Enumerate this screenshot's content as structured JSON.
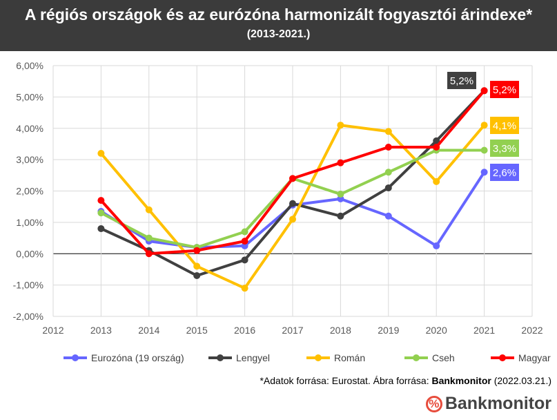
{
  "chart_data": {
    "type": "line",
    "title": "A régiós országok és az eurózóna harmonizált fogyasztói árindexe*",
    "subtitle": "(2013-2021.)",
    "x": [
      2013,
      2014,
      2015,
      2016,
      2017,
      2018,
      2019,
      2020,
      2021
    ],
    "xlim": [
      2012,
      2022
    ],
    "xticks": [
      "2012",
      "2013",
      "2014",
      "2015",
      "2016",
      "2017",
      "2018",
      "2019",
      "2020",
      "2021",
      "2022"
    ],
    "ylim": [
      -2,
      6
    ],
    "yticks": [
      "-2,00%",
      "-1,00%",
      "0,00%",
      "1,00%",
      "2,00%",
      "3,00%",
      "4,00%",
      "5,00%",
      "6,00%"
    ],
    "grid": true,
    "legend_position": "bottom",
    "series": [
      {
        "name": "Eurozóna (19 ország)",
        "color": "#6666ff",
        "values": [
          1.35,
          0.4,
          0.2,
          0.25,
          1.55,
          1.75,
          1.2,
          0.25,
          2.6
        ],
        "end_label": "2,6%"
      },
      {
        "name": "Lengyel",
        "color": "#404040",
        "values": [
          0.8,
          0.1,
          -0.7,
          -0.2,
          1.6,
          1.2,
          2.1,
          3.6,
          5.2
        ],
        "end_label": "5,2%"
      },
      {
        "name": "Román",
        "color": "#ffc000",
        "values": [
          3.2,
          1.4,
          -0.4,
          -1.1,
          1.1,
          4.1,
          3.9,
          2.3,
          4.1
        ],
        "end_label": "4,1%"
      },
      {
        "name": "Cseh",
        "color": "#92d050",
        "values": [
          1.3,
          0.5,
          0.2,
          0.7,
          2.4,
          1.9,
          2.6,
          3.3,
          3.3
        ],
        "end_label": "3,3%"
      },
      {
        "name": "Magyar",
        "color": "#ff0000",
        "values": [
          1.7,
          0.0,
          0.1,
          0.4,
          2.4,
          2.9,
          3.4,
          3.4,
          5.2
        ],
        "end_label": "5,2%"
      }
    ]
  },
  "footer": {
    "prefix": "*Adatok forrása: Eurostat. Ábra forrása: ",
    "brand": "Bankmonitor",
    "suffix": " (2022.03.21.)"
  },
  "logo": {
    "symbol": "%",
    "text": "Bankmonitor"
  }
}
